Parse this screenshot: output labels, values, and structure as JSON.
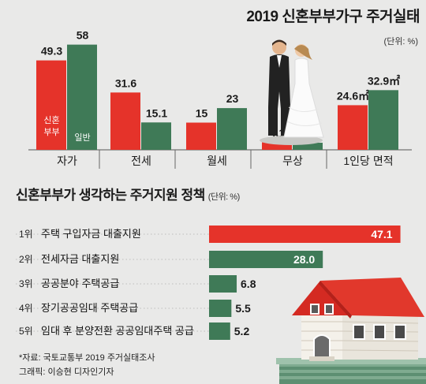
{
  "title": "2019 신혼부부가구 주거실태",
  "unit": "(단위: %)",
  "chart_data": [
    {
      "type": "bar",
      "title": "2019 신혼부부가구 주거실태",
      "unit": "(단위: %)",
      "categories": [
        "자가",
        "전세",
        "월세",
        "무상",
        "1인당 면적"
      ],
      "series": [
        {
          "name": "신혼 부부",
          "values": [
            49.3,
            31.6,
            15,
            4.1,
            24.6
          ],
          "color": "#e5332a"
        },
        {
          "name": "일반",
          "values": [
            58,
            15.1,
            23,
            3.9,
            32.9
          ],
          "color": "#3f7a57"
        }
      ],
      "value_labels": [
        [
          "49.3",
          "31.6",
          "15",
          "4.1",
          "24.6㎡"
        ],
        [
          "58",
          "15.1",
          "23",
          "3.9",
          "32.9㎡"
        ]
      ],
      "grid": false
    },
    {
      "type": "bar",
      "orientation": "horizontal",
      "title": "신혼부부가 생각하는 주거지원 정책",
      "unit": "(단위: %)",
      "ranks": [
        "1위",
        "2위",
        "3위",
        "4위",
        "5위"
      ],
      "categories": [
        "주택 구입자금 대출지원",
        "전세자금 대출지원",
        "공공분야 주택공급",
        "장기공공임대 주택공급",
        "임대 후 분양전환 공공임대주택 공급"
      ],
      "values": [
        47.1,
        28.0,
        6.8,
        5.5,
        5.2
      ],
      "value_labels": [
        "47.1",
        "28.0",
        "6.8",
        "5.5",
        "5.2"
      ],
      "colors": [
        "#e5332a",
        "#3f7a57",
        "#3f7a57",
        "#3f7a57",
        "#3f7a57"
      ]
    }
  ],
  "footnote": {
    "source": "*자료: 국토교통부 2019 주거실태조사",
    "credit": "그래픽: 이승현 디자인기자"
  }
}
